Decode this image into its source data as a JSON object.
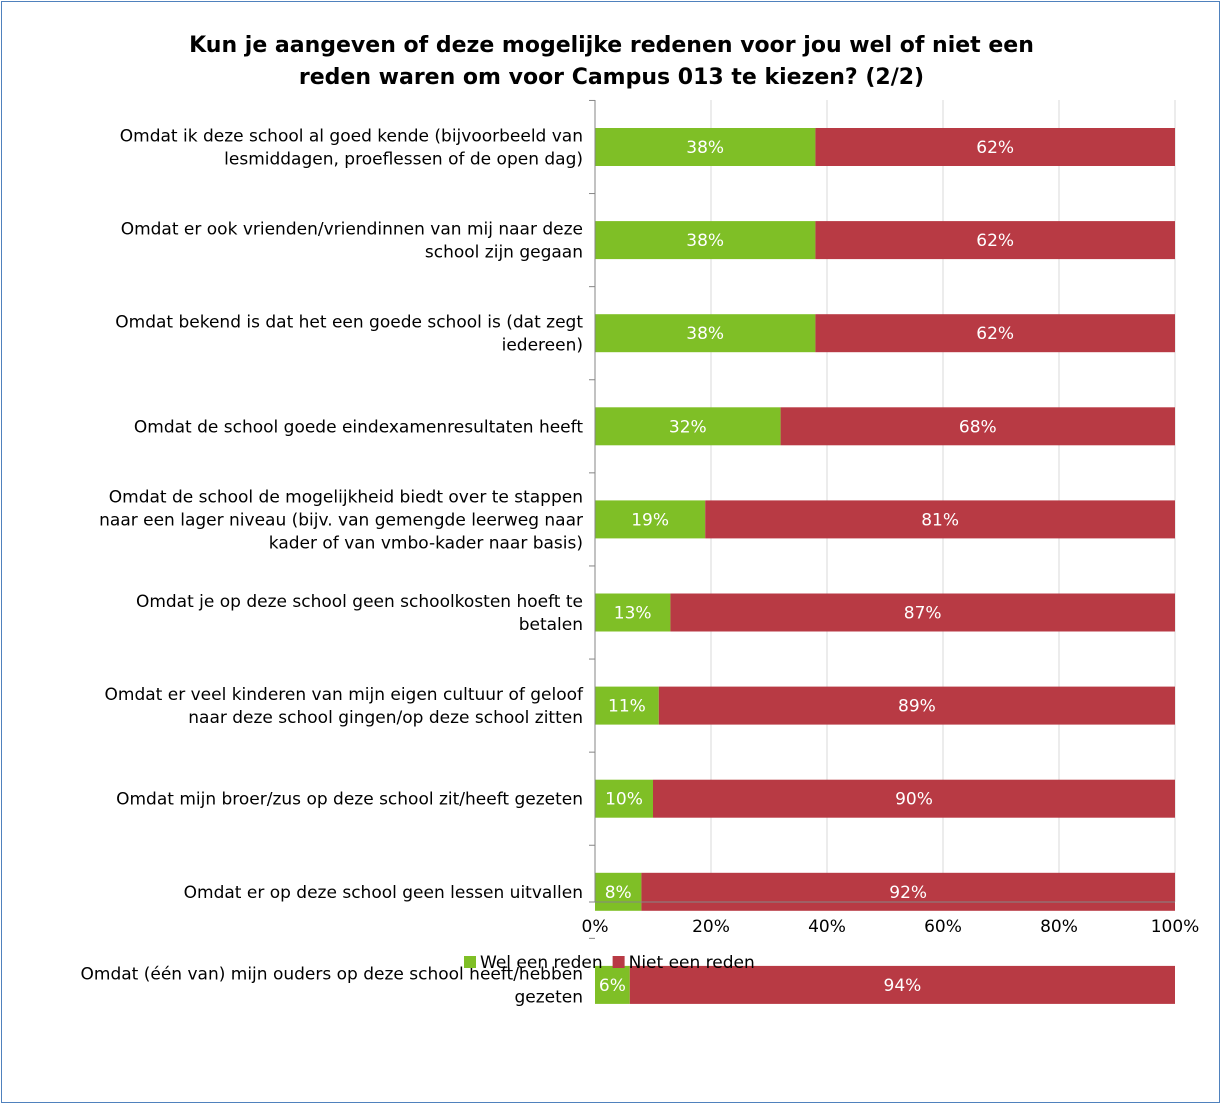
{
  "chart_data": {
    "type": "bar",
    "orientation": "horizontal",
    "stacked": true,
    "title": "Kun je aangeven of deze mogelijke redenen voor jou wel of niet een reden waren om voor Campus 013 te kiezen? (2/2)",
    "title_lines": [
      "Kun je aangeven of deze mogelijke redenen voor jou wel of niet een",
      "reden waren om voor Campus 013 te kiezen? (2/2)"
    ],
    "categories": [
      [
        "Omdat ik deze school al goed kende (bijvoorbeeld van",
        "lesmiddagen, proeflessen of de open dag)"
      ],
      [
        "Omdat er ook vrienden/vriendinnen van mij naar deze",
        "school zijn gegaan"
      ],
      [
        "Omdat bekend is dat het een goede school is (dat zegt",
        "iedereen)"
      ],
      [
        "Omdat de school goede eindexamenresultaten heeft"
      ],
      [
        "Omdat de school de mogelijkheid biedt over te stappen",
        "naar een lager niveau (bijv. van gemengde leerweg naar",
        "kader of van vmbo-kader naar basis)"
      ],
      [
        "Omdat je op deze school geen schoolkosten hoeft te",
        "betalen"
      ],
      [
        "Omdat er veel kinderen van mijn eigen cultuur of geloof",
        "naar deze school gingen/op deze school zitten"
      ],
      [
        "Omdat mijn broer/zus op deze school zit/heeft gezeten"
      ],
      [
        "Omdat er op deze school geen lessen uitvallen"
      ],
      [
        "Omdat (één van) mijn ouders op deze school heeft/hebben",
        "gezeten"
      ]
    ],
    "series": [
      {
        "name": "Wel een reden",
        "color": "#7fbf26",
        "values": [
          38,
          38,
          38,
          32,
          19,
          13,
          11,
          10,
          8,
          6
        ],
        "labels": [
          "38%",
          "38%",
          "38%",
          "32%",
          "19%",
          "13%",
          "11%",
          "10%",
          "8%",
          "6%"
        ]
      },
      {
        "name": "Niet een reden",
        "color": "#b83a44",
        "values": [
          62,
          62,
          62,
          68,
          81,
          87,
          89,
          90,
          92,
          94
        ],
        "labels": [
          "62%",
          "62%",
          "62%",
          "68%",
          "81%",
          "87%",
          "89%",
          "90%",
          "92%",
          "94%"
        ]
      }
    ],
    "xlim": [
      0,
      100
    ],
    "x_ticks": [
      0,
      20,
      40,
      60,
      80,
      100
    ],
    "x_tick_labels": [
      "0%",
      "20%",
      "40%",
      "60%",
      "80%",
      "100%"
    ],
    "grid": true,
    "legend_position": "bottom"
  }
}
